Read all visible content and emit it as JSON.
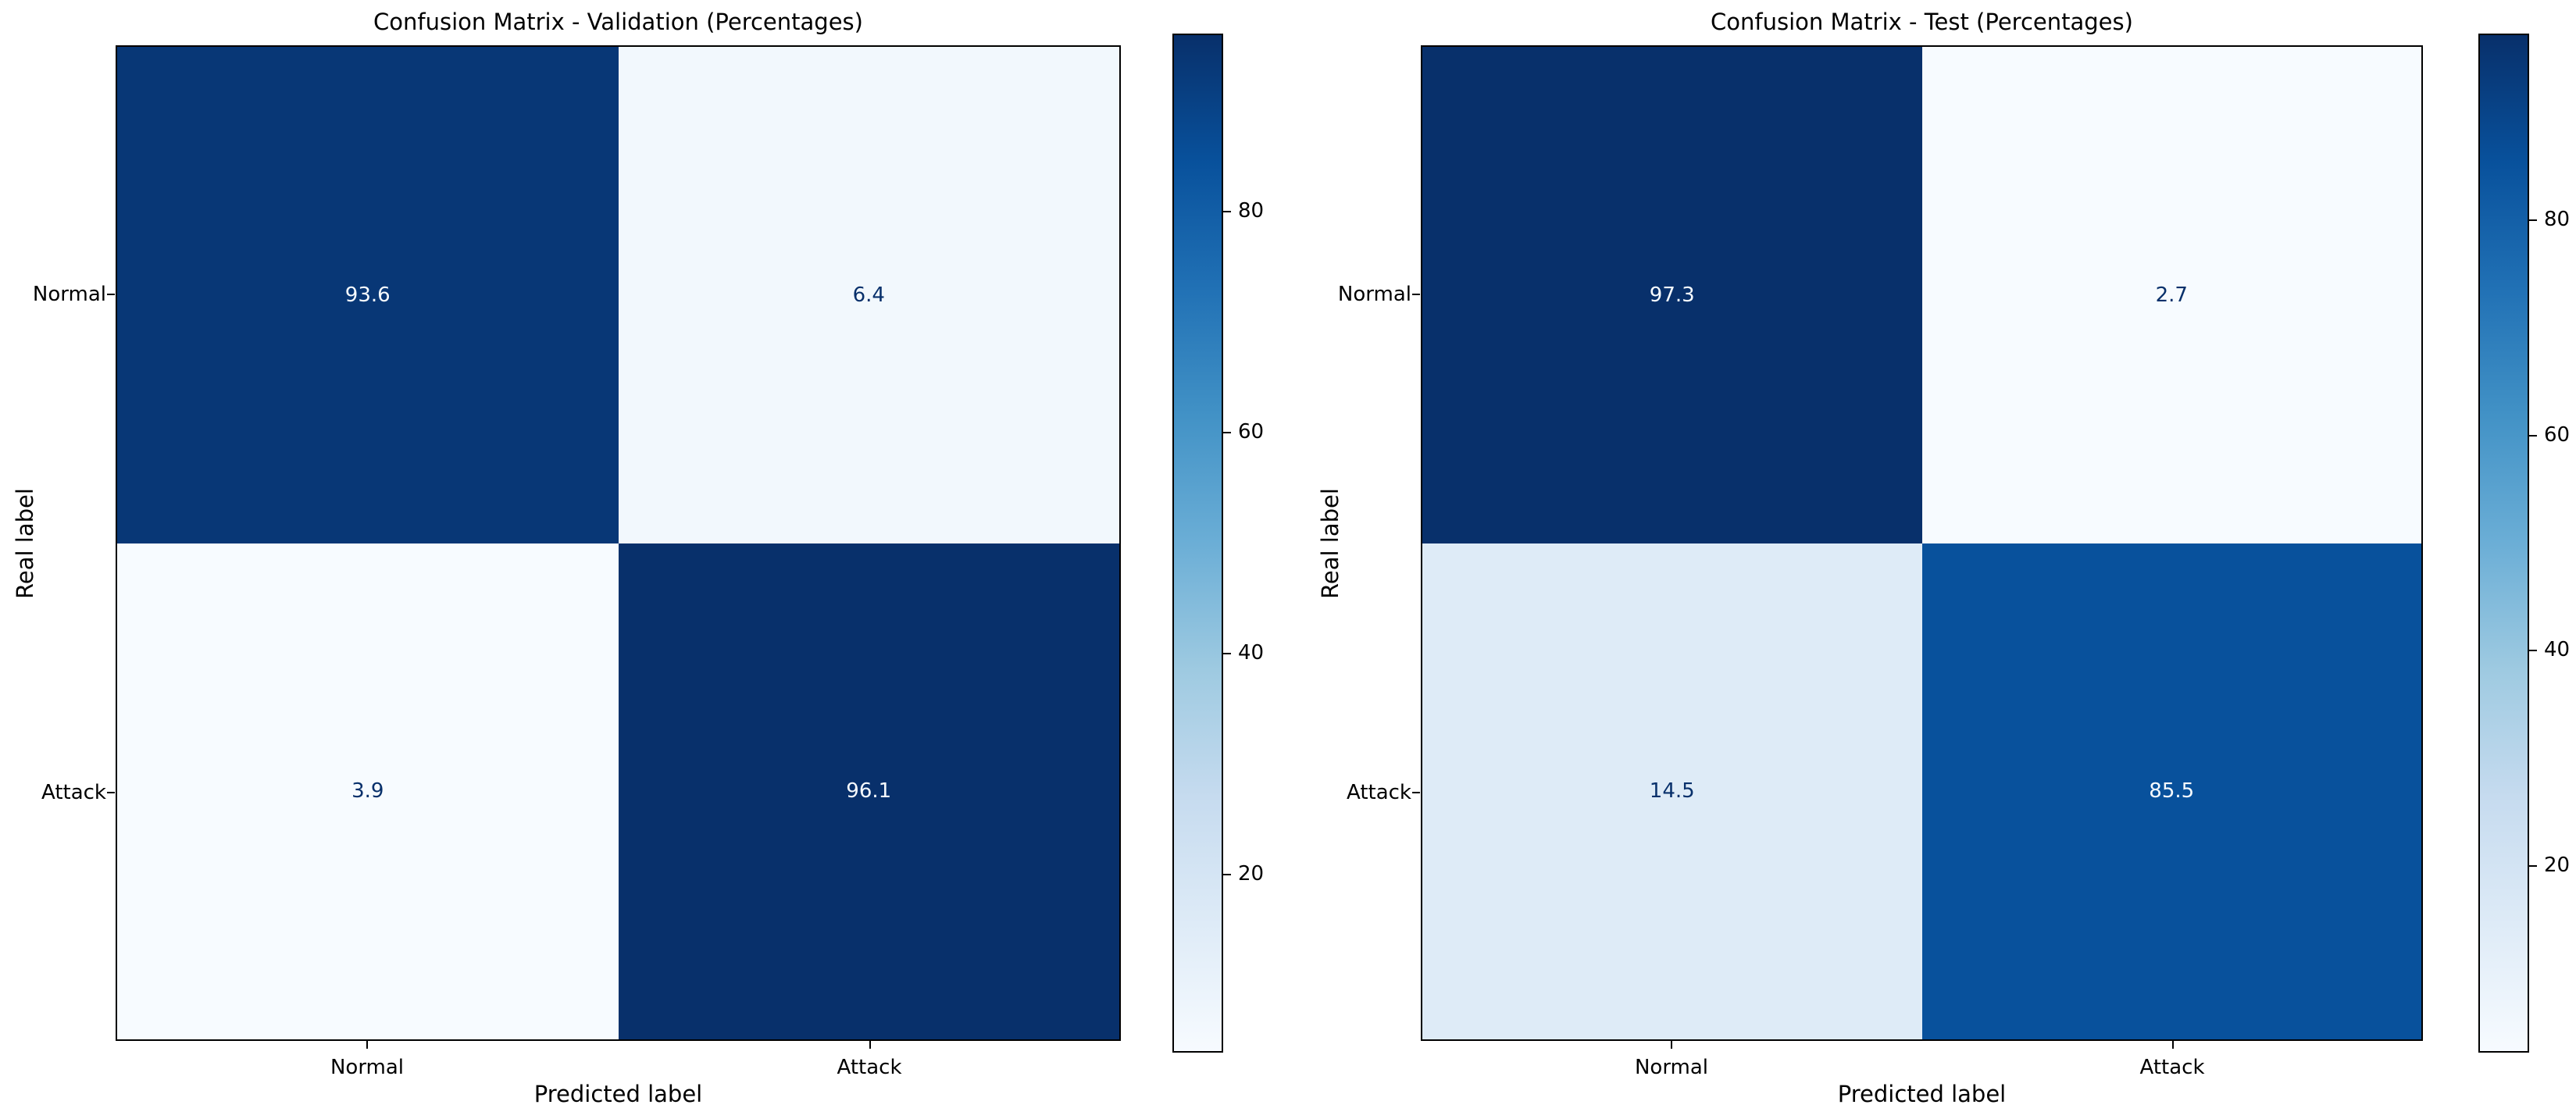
{
  "figure": {
    "background": "#ffffff",
    "text_color": "#000000"
  },
  "colors": {
    "colormap_name": "Blues",
    "blues_anchors": [
      "#f7fbff",
      "#deebf7",
      "#c6dbef",
      "#9ecae1",
      "#6baed6",
      "#4292c6",
      "#2171b5",
      "#08519c",
      "#08306b"
    ]
  },
  "chart_data": [
    {
      "type": "heatmap",
      "title": "Confusion Matrix - Validation (Percentages)",
      "xlabel": "Predicted label",
      "ylabel": "Real label",
      "x_categories": [
        "Normal",
        "Attack"
      ],
      "y_categories": [
        "Normal",
        "Attack"
      ],
      "values": [
        [
          93.6,
          6.4
        ],
        [
          3.9,
          96.1
        ]
      ],
      "vmin": 3.9,
      "vmax": 96.1,
      "colorbar_ticks": [
        80,
        60,
        40,
        20
      ],
      "legend_position": "right-colorbar",
      "grid": false
    },
    {
      "type": "heatmap",
      "title": "Confusion Matrix - Test (Percentages)",
      "xlabel": "Predicted label",
      "ylabel": "Real label",
      "x_categories": [
        "Normal",
        "Attack"
      ],
      "y_categories": [
        "Normal",
        "Attack"
      ],
      "values": [
        [
          97.3,
          2.7
        ],
        [
          14.5,
          85.5
        ]
      ],
      "vmin": 2.7,
      "vmax": 97.3,
      "colorbar_ticks": [
        80,
        60,
        40,
        20
      ],
      "legend_position": "right-colorbar",
      "grid": false
    }
  ]
}
